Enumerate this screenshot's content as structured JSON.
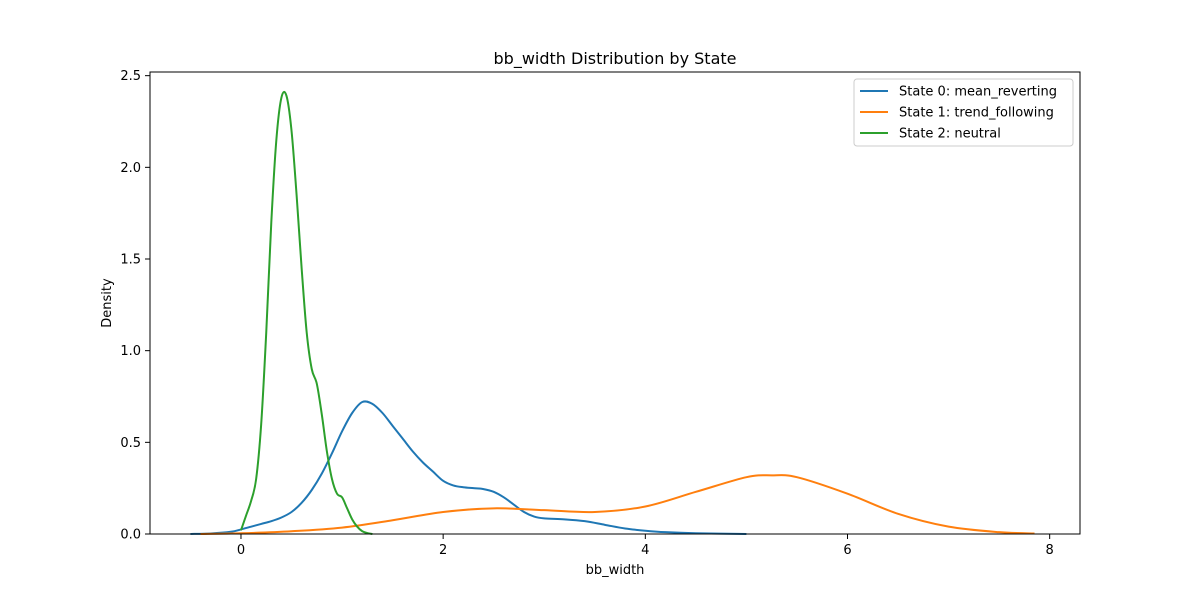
{
  "chart_data": {
    "type": "line",
    "title": "bb_width Distribution by State",
    "xlabel": "bb_width",
    "ylabel": "Density",
    "xlim": [
      -0.9,
      8.3
    ],
    "ylim": [
      0,
      2.52
    ],
    "x_ticks": [
      0,
      2,
      4,
      6,
      8
    ],
    "x_tick_labels": [
      "0",
      "2",
      "4",
      "6",
      "8"
    ],
    "y_ticks": [
      0,
      0.5,
      1.0,
      1.5,
      2.0,
      2.5
    ],
    "y_tick_labels": [
      "0.0",
      "0.5",
      "1.0",
      "1.5",
      "2.0",
      "2.5"
    ],
    "grid": false,
    "legend_position": "top-right",
    "series": [
      {
        "name": "State 0: mean_reverting",
        "color": "#1f77b4",
        "x": [
          -0.5,
          -0.3,
          -0.1,
          0.0,
          0.1,
          0.2,
          0.3,
          0.4,
          0.5,
          0.6,
          0.7,
          0.8,
          0.9,
          1.0,
          1.1,
          1.2,
          1.3,
          1.4,
          1.5,
          1.6,
          1.7,
          1.8,
          1.9,
          2.0,
          2.1,
          2.2,
          2.3,
          2.4,
          2.5,
          2.6,
          2.7,
          2.8,
          2.9,
          3.0,
          3.2,
          3.4,
          3.6,
          3.8,
          4.0,
          4.2,
          4.5,
          5.0
        ],
        "y": [
          0.0,
          0.003,
          0.012,
          0.025,
          0.04,
          0.055,
          0.07,
          0.09,
          0.12,
          0.17,
          0.24,
          0.33,
          0.44,
          0.56,
          0.66,
          0.72,
          0.71,
          0.66,
          0.59,
          0.52,
          0.45,
          0.39,
          0.34,
          0.29,
          0.265,
          0.255,
          0.25,
          0.245,
          0.23,
          0.2,
          0.16,
          0.12,
          0.095,
          0.085,
          0.08,
          0.07,
          0.05,
          0.03,
          0.018,
          0.01,
          0.004,
          0.0
        ]
      },
      {
        "name": "State 1: trend_following",
        "color": "#ff7f0e",
        "x": [
          -0.4,
          0.0,
          0.5,
          1.0,
          1.5,
          2.0,
          2.5,
          3.0,
          3.5,
          4.0,
          4.5,
          5.0,
          5.25,
          5.5,
          6.0,
          6.5,
          7.0,
          7.5,
          7.85
        ],
        "y": [
          0.0,
          0.004,
          0.015,
          0.035,
          0.075,
          0.12,
          0.14,
          0.13,
          0.12,
          0.15,
          0.23,
          0.31,
          0.32,
          0.31,
          0.22,
          0.11,
          0.04,
          0.01,
          0.003
        ]
      },
      {
        "name": "State 2: neutral",
        "color": "#2ca02c",
        "x": [
          0.0,
          0.05,
          0.1,
          0.15,
          0.2,
          0.25,
          0.3,
          0.35,
          0.4,
          0.45,
          0.5,
          0.55,
          0.6,
          0.65,
          0.7,
          0.75,
          0.8,
          0.85,
          0.9,
          0.95,
          1.0,
          1.05,
          1.1,
          1.15,
          1.2,
          1.25,
          1.3
        ],
        "y": [
          0.02,
          0.1,
          0.18,
          0.3,
          0.6,
          1.1,
          1.7,
          2.15,
          2.38,
          2.39,
          2.2,
          1.85,
          1.45,
          1.1,
          0.9,
          0.82,
          0.65,
          0.45,
          0.3,
          0.22,
          0.2,
          0.14,
          0.08,
          0.04,
          0.015,
          0.005,
          0.0
        ]
      }
    ]
  }
}
